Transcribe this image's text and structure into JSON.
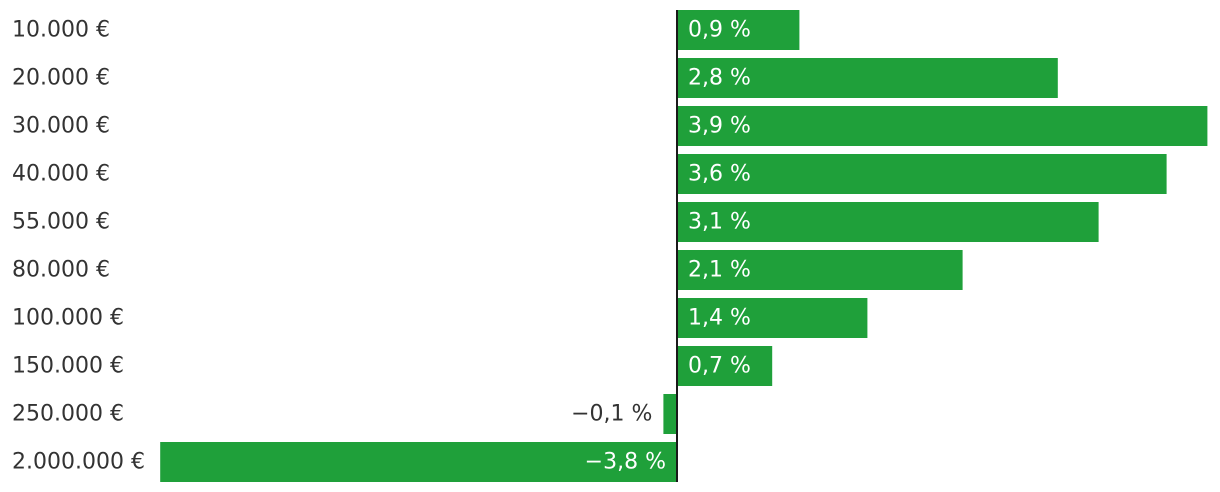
{
  "chart_data": {
    "type": "bar",
    "orientation": "horizontal",
    "categories": [
      "10.000 €",
      "20.000 €",
      "30.000 €",
      "40.000 €",
      "55.000 €",
      "80.000 €",
      "100.000 €",
      "150.000 €",
      "250.000 €",
      "2.000.000 €"
    ],
    "values": [
      0.9,
      2.8,
      3.9,
      3.6,
      3.1,
      2.1,
      1.4,
      0.7,
      -0.1,
      -3.8
    ],
    "data_labels": [
      "0,9 %",
      "2,8 %",
      "3,9 %",
      "3,6 %",
      "3,1 %",
      "2,1 %",
      "1,4 %",
      "0,7 %",
      "−0,1 %",
      "−3,8 %"
    ],
    "xlim": [
      -3.8,
      3.9
    ],
    "title": "",
    "xlabel": "",
    "ylabel": "",
    "grid": false,
    "legend": "none",
    "colors": {
      "bar": "#1fa03a",
      "axis": "#1a1a1a",
      "category_text": "#333333",
      "label_inside": "#ffffff",
      "label_outside": "#333333"
    }
  }
}
